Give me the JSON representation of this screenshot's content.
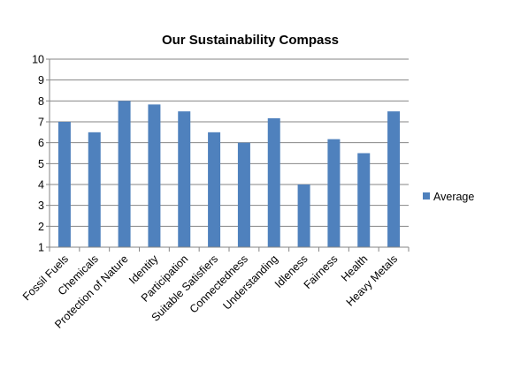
{
  "chart_data": {
    "type": "bar",
    "title": "Our Sustainability Compass",
    "categories": [
      "Fossil Fuels",
      "Chemicals",
      "Protection of Nature",
      "Identity",
      "Participation",
      "Suitable Satisfiers",
      "Connectedness",
      "Understanding",
      "Idleness",
      "Fairness",
      "Health",
      "Heavy Metals"
    ],
    "series": [
      {
        "name": "Average",
        "values": [
          7.0,
          6.5,
          8.0,
          7.83,
          7.5,
          6.5,
          6.0,
          7.17,
          4.0,
          6.17,
          5.5,
          7.5
        ]
      }
    ],
    "ylim": [
      1,
      10
    ],
    "yticks": [
      "1",
      "2",
      "3",
      "4",
      "5",
      "6",
      "7",
      "8",
      "9",
      "10"
    ],
    "grid": true,
    "legend_position": "right",
    "colors": {
      "bar": "#4F81BD",
      "grid": "#868686",
      "axis": "#868686"
    }
  }
}
